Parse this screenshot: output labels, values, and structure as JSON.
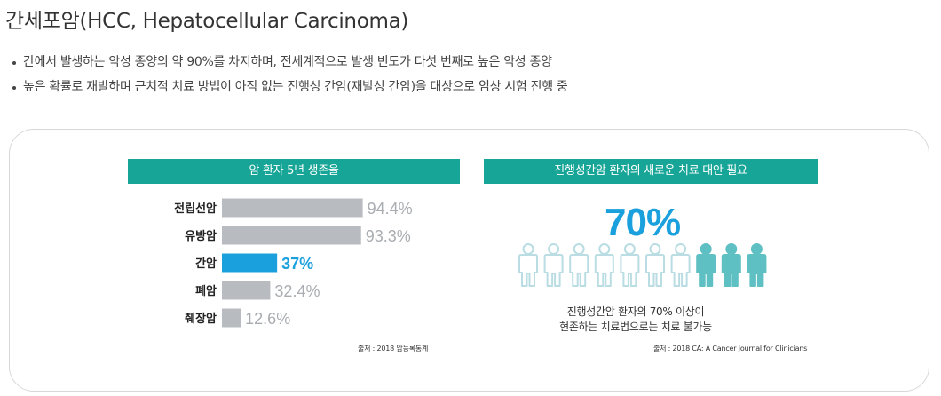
{
  "title": "간세포암(HCC, Hepatocellular Carcinoma)",
  "bullets": [
    "간에서 발생하는 악성 종양의 약 90%를 차지하며, 전세계적으로 발생 빈도가 다섯 번째로 높은 악성 종양",
    "높은 확률로 재발하며 근치적 치료 방법이 아직 없는 진행성 간암(재발성 간암)을 대상으로 임상 시험 진행 중"
  ],
  "colors": {
    "banner": "#16a596",
    "bar_default": "#b8bcc0",
    "bar_highlight": "#1aa0dd",
    "person_outline": "#b9dde3",
    "person_filled": "#5fc0c4",
    "big_pct": "#1aa0dd"
  },
  "left_panel": {
    "banner": "암 환자 5년 생존율",
    "source": "출처 : 2018 암등록통계"
  },
  "right_panel": {
    "banner": "진행성간암 환자의 새로운 치료 대안 필요",
    "big_value": "70%",
    "caption_line1": "진행성간암 환자의 70% 이상이",
    "caption_line2": "현존하는 치료법으로는 치료 불가능",
    "source": "출처 : 2018 CA: A Cancer Journal for Clinicians",
    "icon_count": 10,
    "icon_highlighted": 3,
    "icon_name": "person-icon"
  },
  "chart_data": {
    "type": "bar",
    "orientation": "horizontal",
    "title": "암 환자 5년 생존율",
    "categories": [
      "전립선암",
      "유방암",
      "간암",
      "폐암",
      "췌장암"
    ],
    "values": [
      94.4,
      93.3,
      37,
      32.4,
      12.6
    ],
    "labels": [
      "94.4%",
      "93.3%",
      "37%",
      "32.4%",
      "12.6%"
    ],
    "highlight_index": 2,
    "xlim": [
      0,
      100
    ],
    "grid": false,
    "legend": "none"
  }
}
